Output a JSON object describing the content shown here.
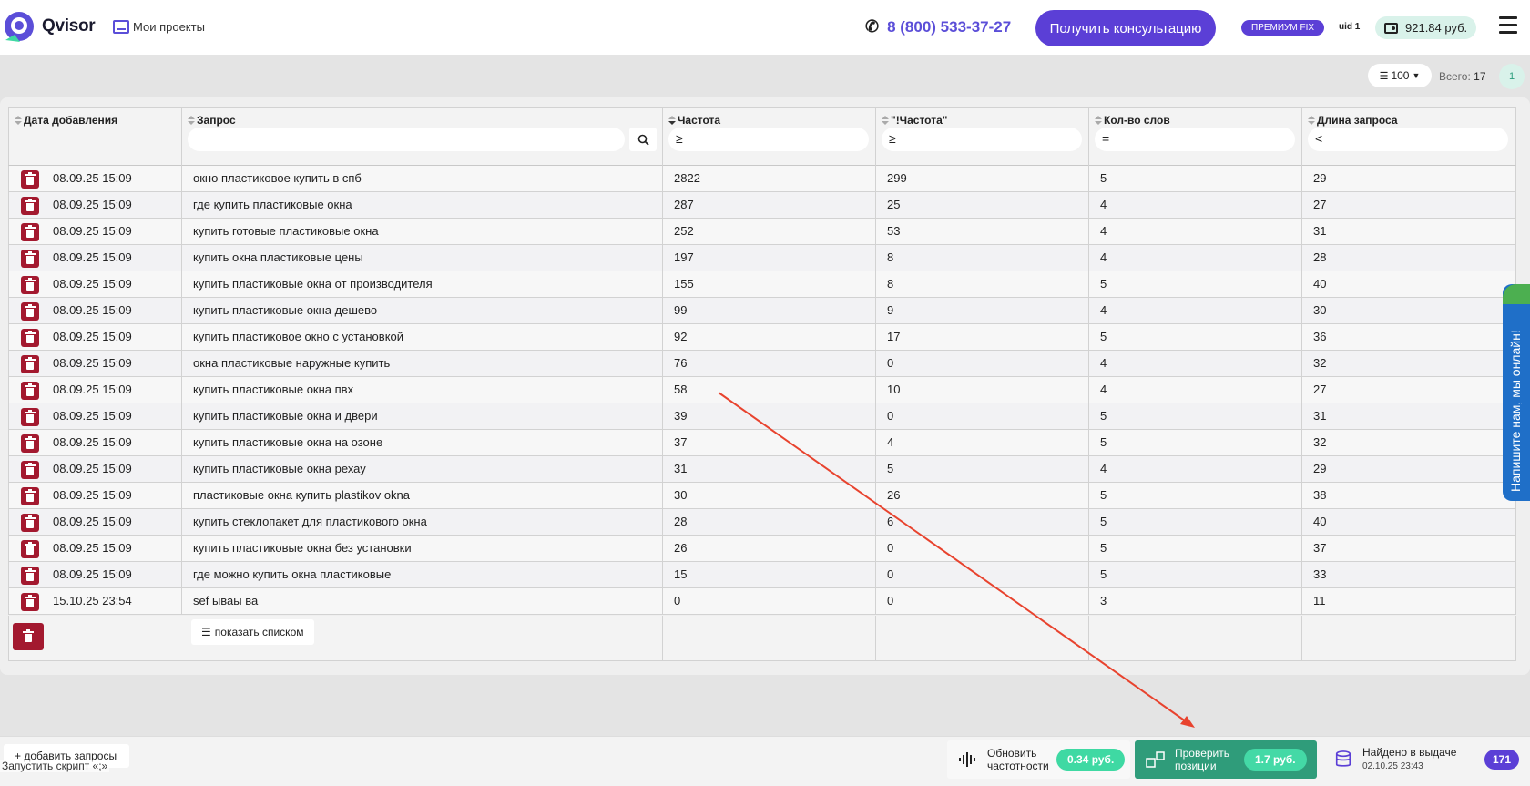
{
  "header": {
    "logo_text": "Qvisor",
    "projects_label": "Мои проекты",
    "phone": "8 (800) 533-37-27",
    "consult_button": "Получить консультацию",
    "plan_badge": "ПРЕМИУМ FIX",
    "uid": "uid 1",
    "balance": "921.84 руб."
  },
  "toolbar": {
    "per_page": "100",
    "total_label": "Всего:",
    "total_value": "17",
    "page": "1"
  },
  "table": {
    "columns": [
      {
        "label": "Дата добавления"
      },
      {
        "label": "Запрос"
      },
      {
        "label": "Частота",
        "filter_op": "≥"
      },
      {
        "label": "\"!Частота\"",
        "filter_op": "≥"
      },
      {
        "label": "Кол-во слов",
        "filter_op": "="
      },
      {
        "label": "Длина запроса",
        "filter_op": "<"
      }
    ],
    "rows": [
      {
        "date": "08.09.25 15:09",
        "query": "окно пластиковое купить в спб",
        "freq": "2822",
        "exact": "299",
        "words": "5",
        "length": "29"
      },
      {
        "date": "08.09.25 15:09",
        "query": "где купить пластиковые окна",
        "freq": "287",
        "exact": "25",
        "words": "4",
        "length": "27"
      },
      {
        "date": "08.09.25 15:09",
        "query": "купить готовые пластиковые окна",
        "freq": "252",
        "exact": "53",
        "words": "4",
        "length": "31"
      },
      {
        "date": "08.09.25 15:09",
        "query": "купить окна пластиковые цены",
        "freq": "197",
        "exact": "8",
        "words": "4",
        "length": "28"
      },
      {
        "date": "08.09.25 15:09",
        "query": "купить пластиковые окна от производителя",
        "freq": "155",
        "exact": "8",
        "words": "5",
        "length": "40"
      },
      {
        "date": "08.09.25 15:09",
        "query": "купить пластиковые окна дешево",
        "freq": "99",
        "exact": "9",
        "words": "4",
        "length": "30"
      },
      {
        "date": "08.09.25 15:09",
        "query": "купить пластиковое окно с установкой",
        "freq": "92",
        "exact": "17",
        "words": "5",
        "length": "36"
      },
      {
        "date": "08.09.25 15:09",
        "query": "окна пластиковые наружные купить",
        "freq": "76",
        "exact": "0",
        "words": "4",
        "length": "32"
      },
      {
        "date": "08.09.25 15:09",
        "query": "купить пластиковые окна пвх",
        "freq": "58",
        "exact": "10",
        "words": "4",
        "length": "27"
      },
      {
        "date": "08.09.25 15:09",
        "query": "купить пластиковые окна и двери",
        "freq": "39",
        "exact": "0",
        "words": "5",
        "length": "31"
      },
      {
        "date": "08.09.25 15:09",
        "query": "купить пластиковые окна на озоне",
        "freq": "37",
        "exact": "4",
        "words": "5",
        "length": "32"
      },
      {
        "date": "08.09.25 15:09",
        "query": "купить пластиковые окна рехау",
        "freq": "31",
        "exact": "5",
        "words": "4",
        "length": "29"
      },
      {
        "date": "08.09.25 15:09",
        "query": "пластиковые окна купить plastikov okna",
        "freq": "30",
        "exact": "26",
        "words": "5",
        "length": "38"
      },
      {
        "date": "08.09.25 15:09",
        "query": "купить стеклопакет для пластикового окна",
        "freq": "28",
        "exact": "6",
        "words": "5",
        "length": "40"
      },
      {
        "date": "08.09.25 15:09",
        "query": "купить пластиковые окна без установки",
        "freq": "26",
        "exact": "0",
        "words": "5",
        "length": "37"
      },
      {
        "date": "08.09.25 15:09",
        "query": "где можно купить окна пластиковые",
        "freq": "15",
        "exact": "0",
        "words": "5",
        "length": "33"
      },
      {
        "date": "15.10.25 23:54",
        "query": "sef ываы ва",
        "freq": "0",
        "exact": "0",
        "words": "3",
        "length": "11"
      }
    ],
    "show_list_button": "показать списком"
  },
  "chat_widget": "Напишите нам, мы онлайн!",
  "bottom": {
    "add_queries": "+ добавить запросы",
    "run_script": "Запустить скрипт «;»",
    "update_freq_label": "Обновить частотности",
    "update_freq_price": "0.34 руб.",
    "check_positions_label": "Проверить позиции",
    "check_positions_price": "1.7 руб.",
    "found_label": "Найдено в выдаче",
    "found_date": "02.10.25 23:43",
    "found_count": "171"
  },
  "colors": {
    "accent": "#5b3fd6",
    "delete": "#a3192f",
    "green": "#2f9c7a",
    "arrow": "#e8432e"
  },
  "icons": [
    "phone-icon",
    "wallet-icon",
    "menu-icon",
    "search-icon",
    "trash-icon",
    "list-icon",
    "sound-wave-icon",
    "positions-icon",
    "database-icon"
  ]
}
